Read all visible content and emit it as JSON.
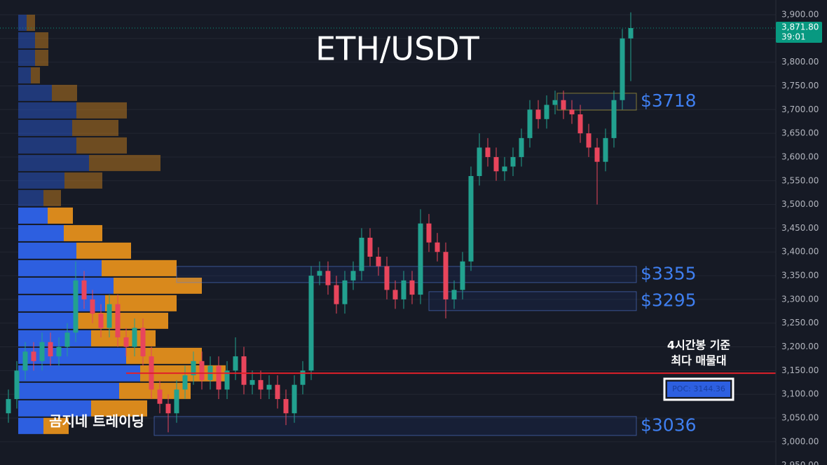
{
  "chart_data": {
    "type": "candlestick",
    "title": "ETH/USDT",
    "ylim": [
      2951,
      3931
    ],
    "yticks": [
      {
        "value": 2950,
        "label": "2,950.00"
      },
      {
        "value": 3000,
        "label": "3,000.00"
      },
      {
        "value": 3050,
        "label": "3,050.00"
      },
      {
        "value": 3100,
        "label": "3,100.00"
      },
      {
        "value": 3150,
        "label": "3,150.00"
      },
      {
        "value": 3200,
        "label": "3,200.00"
      },
      {
        "value": 3250,
        "label": "3,250.00"
      },
      {
        "value": 3300,
        "label": "3,300.00"
      },
      {
        "value": 3350,
        "label": "3,350.00"
      },
      {
        "value": 3400,
        "label": "3,400.00"
      },
      {
        "value": 3450,
        "label": "3,450.00"
      },
      {
        "value": 3500,
        "label": "3,500.00"
      },
      {
        "value": 3550,
        "label": "3,550.00"
      },
      {
        "value": 3600,
        "label": "3,600.00"
      },
      {
        "value": 3650,
        "label": "3,650.00"
      },
      {
        "value": 3700,
        "label": "3,700.00"
      },
      {
        "value": 3750,
        "label": "3,750.00"
      },
      {
        "value": 3800,
        "label": "3,800.00"
      },
      {
        "value": 3850,
        "label": "3,850.00"
      },
      {
        "value": 3900,
        "label": "3,900.00"
      }
    ],
    "grid": true,
    "up_color": "#22a18f",
    "down_color": "#e8455c",
    "open": [
      3060,
      3090,
      3150,
      3190,
      3170,
      3210,
      3180,
      3200,
      3230,
      3340,
      3300,
      3270,
      3240,
      3290,
      3220,
      3200,
      3240,
      3180,
      3110,
      3080,
      3060,
      3110,
      3140,
      3170,
      3130,
      3160,
      3110,
      3150,
      3180,
      3120,
      3130,
      3110,
      3120,
      3090,
      3060,
      3120,
      3150,
      3350,
      3360,
      3330,
      3290,
      3340,
      3360,
      3430,
      3390,
      3370,
      3320,
      3300,
      3340,
      3310,
      3460,
      3420,
      3400,
      3300,
      3320,
      3380,
      3560,
      3620,
      3600,
      3570,
      3580,
      3600,
      3640,
      3700,
      3680,
      3710,
      3720,
      3700,
      3690,
      3650,
      3620,
      3590,
      3640,
      3720,
      3850
    ],
    "high": [
      3110,
      3170,
      3210,
      3210,
      3230,
      3230,
      3220,
      3250,
      3380,
      3360,
      3320,
      3290,
      3310,
      3310,
      3240,
      3260,
      3260,
      3200,
      3130,
      3100,
      3130,
      3160,
      3190,
      3190,
      3180,
      3180,
      3170,
      3220,
      3200,
      3150,
      3150,
      3140,
      3140,
      3110,
      3140,
      3170,
      3370,
      3380,
      3380,
      3350,
      3360,
      3380,
      3450,
      3450,
      3410,
      3390,
      3340,
      3360,
      3360,
      3490,
      3480,
      3440,
      3420,
      3340,
      3400,
      3580,
      3650,
      3640,
      3620,
      3600,
      3620,
      3660,
      3720,
      3720,
      3730,
      3740,
      3740,
      3720,
      3710,
      3670,
      3640,
      3660,
      3740,
      3870,
      3905
    ],
    "low": [
      3040,
      3070,
      3130,
      3150,
      3150,
      3160,
      3160,
      3180,
      3210,
      3280,
      3250,
      3220,
      3220,
      3200,
      3180,
      3180,
      3160,
      3090,
      3060,
      3020,
      3040,
      3090,
      3120,
      3110,
      3110,
      3090,
      3090,
      3130,
      3100,
      3100,
      3090,
      3090,
      3070,
      3035,
      3040,
      3100,
      3130,
      3330,
      3310,
      3270,
      3270,
      3320,
      3340,
      3370,
      3350,
      3300,
      3280,
      3280,
      3290,
      3290,
      3400,
      3380,
      3260,
      3280,
      3300,
      3360,
      3540,
      3580,
      3550,
      3550,
      3560,
      3580,
      3620,
      3660,
      3660,
      3690,
      3680,
      3670,
      3630,
      3600,
      3500,
      3570,
      3620,
      3700,
      3760
    ],
    "close": [
      3090,
      3150,
      3190,
      3170,
      3210,
      3180,
      3200,
      3230,
      3340,
      3300,
      3270,
      3240,
      3290,
      3220,
      3200,
      3240,
      3180,
      3110,
      3080,
      3060,
      3110,
      3140,
      3170,
      3130,
      3160,
      3110,
      3150,
      3180,
      3120,
      3130,
      3110,
      3120,
      3090,
      3060,
      3120,
      3150,
      3350,
      3360,
      3330,
      3290,
      3340,
      3360,
      3430,
      3390,
      3370,
      3320,
      3300,
      3340,
      3310,
      3460,
      3420,
      3400,
      3300,
      3320,
      3380,
      3560,
      3620,
      3600,
      3570,
      3580,
      3600,
      3640,
      3700,
      3680,
      3710,
      3720,
      3700,
      3690,
      3650,
      3620,
      3590,
      3640,
      3720,
      3850,
      3871.8
    ],
    "last_price_label": "3,871.80",
    "timer": "39:01",
    "last_price_color": "#089981",
    "profile": {
      "bins": [
        3014.8,
        3051.8,
        3088.7,
        3125.7,
        3162.6,
        3199.5,
        3236.5,
        3273.4,
        3310.4,
        3347.3,
        3384.3,
        3421.2,
        3458.1,
        3495.1,
        3532.0,
        3569.0,
        3605.9,
        3642.9,
        3679.8,
        3716.8,
        3753.7,
        3790.6,
        3827.6,
        3864.5,
        3901.5
      ],
      "buy": [
        36,
        104,
        144,
        174,
        154,
        104,
        84,
        124,
        136,
        119,
        83,
        65,
        42,
        36,
        66,
        101,
        83,
        77,
        83,
        48,
        18,
        24,
        24,
        12
      ],
      "sell": [
        36,
        80,
        102,
        122,
        108,
        92,
        130,
        102,
        126,
        107,
        78,
        55,
        36,
        25,
        54,
        102,
        72,
        66,
        72,
        36,
        13,
        19,
        19,
        12
      ],
      "buy_color": "#2d5fe0",
      "sell_color": "#d9891c",
      "value_area": [
        3014.8,
        3495.1
      ]
    },
    "poc": 3144.36,
    "poc_label": "POC: 3144.36",
    "zones": [
      {
        "label": "$3718",
        "low": 3699,
        "high": 3734.5
      },
      {
        "label": "$3355",
        "low": 3335.5,
        "high": 3369.5
      },
      {
        "label": "$3295",
        "low": 3276.4,
        "high": 3316.3
      },
      {
        "label": "$3036",
        "low": 3013.3,
        "high": 3053.2
      }
    ],
    "annotation": [
      "4시간봉 기준",
      "최다 매물대"
    ],
    "watermark": "곰지네 트레이딩"
  }
}
